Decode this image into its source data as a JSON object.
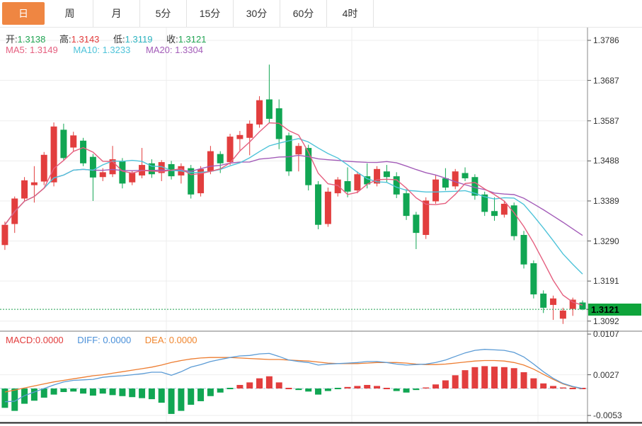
{
  "tabs": {
    "items": [
      {
        "label": "日",
        "active": true
      },
      {
        "label": "周",
        "active": false
      },
      {
        "label": "月",
        "active": false
      },
      {
        "label": "5分",
        "active": false
      },
      {
        "label": "15分",
        "active": false
      },
      {
        "label": "30分",
        "active": false
      },
      {
        "label": "60分",
        "active": false
      },
      {
        "label": "4时",
        "active": false
      }
    ]
  },
  "main_chart": {
    "ohlc": {
      "open_label": "开:",
      "open": "1.3138",
      "high_label": "高:",
      "high": "1.3143",
      "low_label": "低:",
      "low": "1.3119",
      "close_label": "收:",
      "close": "1.3121"
    },
    "ma": {
      "ma5_label": "MA5:",
      "ma5": "1.3149",
      "ma10_label": "MA10:",
      "ma10": "1.3233",
      "ma20_label": "MA20:",
      "ma20": "1.3304"
    },
    "last_price": "1.3121"
  },
  "macd_panel": {
    "macd_label": "MACD:",
    "macd": "0.0000",
    "diff_label": "DIFF:",
    "diff": "0.0000",
    "dea_label": "DEA:",
    "dea": "0.0000"
  },
  "colors": {
    "up": "#e23e3e",
    "down": "#11a653",
    "ma5": "#e55f7f",
    "ma10": "#4ec3d9",
    "ma20": "#a35cb8",
    "diff_line": "#5b9bd5",
    "dea_line": "#ed7d31",
    "badge": "#0ea43b",
    "tab_accent": "#ef8642",
    "dotted_price_line": "#1ca04e",
    "grid": "#ededed",
    "axis_line": "#8a8a8a"
  },
  "chart_data": {
    "type": "candlestick",
    "panels": [
      "price",
      "macd"
    ],
    "legend_position": "top-left",
    "grid": true,
    "price_axis": {
      "ticks": [
        "1.3786",
        "1.3687",
        "1.3587",
        "1.3488",
        "1.3389",
        "1.3290",
        "1.3191",
        "1.3092"
      ],
      "min": 1.3075,
      "max": 1.381
    },
    "current_price": 1.3121,
    "ma_periods": [
      5,
      10,
      20
    ],
    "candles": [
      [
        1.328,
        1.3338,
        1.3268,
        1.333
      ],
      [
        1.3332,
        1.34,
        1.331,
        1.3395
      ],
      [
        1.3395,
        1.3448,
        1.3388,
        1.344
      ],
      [
        1.3428,
        1.3475,
        1.3385,
        1.3435
      ],
      [
        1.3437,
        1.351,
        1.3428,
        1.3503
      ],
      [
        1.3435,
        1.3583,
        1.3425,
        1.3573
      ],
      [
        1.3565,
        1.358,
        1.3488,
        1.3495
      ],
      [
        1.3521,
        1.356,
        1.3512,
        1.3551
      ],
      [
        1.3538,
        1.3545,
        1.3475,
        1.3482
      ],
      [
        1.3498,
        1.3505,
        1.3389,
        1.3447
      ],
      [
        1.3448,
        1.347,
        1.3438,
        1.346
      ],
      [
        1.3455,
        1.3525,
        1.3448,
        1.3492
      ],
      [
        1.3488,
        1.3495,
        1.342,
        1.3432
      ],
      [
        1.3435,
        1.3465,
        1.3428,
        1.3458
      ],
      [
        1.3452,
        1.352,
        1.3445,
        1.3478
      ],
      [
        1.3482,
        1.3492,
        1.3446,
        1.3455
      ],
      [
        1.3458,
        1.349,
        1.3438,
        1.3485
      ],
      [
        1.348,
        1.3488,
        1.3442,
        1.345
      ],
      [
        1.3452,
        1.3482,
        1.3432,
        1.3475
      ],
      [
        1.347,
        1.3478,
        1.3395,
        1.3405
      ],
      [
        1.3408,
        1.3475,
        1.34,
        1.3468
      ],
      [
        1.3462,
        1.3525,
        1.3455,
        1.3512
      ],
      [
        1.3505,
        1.3512,
        1.3458,
        1.3482
      ],
      [
        1.3485,
        1.3555,
        1.3478,
        1.3548
      ],
      [
        1.3542,
        1.3562,
        1.3512,
        1.3552
      ],
      [
        1.3545,
        1.3588,
        1.3502,
        1.358
      ],
      [
        1.3578,
        1.3648,
        1.357,
        1.3638
      ],
      [
        1.364,
        1.3726,
        1.3582,
        1.3592
      ],
      [
        1.3618,
        1.364,
        1.3517,
        1.3542
      ],
      [
        1.3551,
        1.3558,
        1.3451,
        1.3462
      ],
      [
        1.3504,
        1.3532,
        1.3462,
        1.3525
      ],
      [
        1.352,
        1.3528,
        1.3415,
        1.3428
      ],
      [
        1.343,
        1.3438,
        1.3319,
        1.333
      ],
      [
        1.3332,
        1.3422,
        1.3325,
        1.3412
      ],
      [
        1.3408,
        1.3448,
        1.34,
        1.3442
      ],
      [
        1.3438,
        1.3472,
        1.3398,
        1.3412
      ],
      [
        1.3415,
        1.3462,
        1.3408,
        1.3455
      ],
      [
        1.345,
        1.3482,
        1.342,
        1.343
      ],
      [
        1.3432,
        1.3475,
        1.3425,
        1.3468
      ],
      [
        1.3462,
        1.3478,
        1.3436,
        1.3448
      ],
      [
        1.345,
        1.346,
        1.3396,
        1.3405
      ],
      [
        1.3408,
        1.3418,
        1.3342,
        1.3352
      ],
      [
        1.3355,
        1.3362,
        1.327,
        1.331
      ],
      [
        1.3305,
        1.3398,
        1.3295,
        1.339
      ],
      [
        1.3388,
        1.3452,
        1.3382,
        1.3442
      ],
      [
        1.3445,
        1.347,
        1.3415,
        1.3422
      ],
      [
        1.3425,
        1.3468,
        1.3418,
        1.3462
      ],
      [
        1.3458,
        1.3472,
        1.3438,
        1.3445
      ],
      [
        1.3448,
        1.3455,
        1.3392,
        1.3402
      ],
      [
        1.3405,
        1.3412,
        1.3352,
        1.3362
      ],
      [
        1.3364,
        1.3398,
        1.334,
        1.3352
      ],
      [
        1.3355,
        1.339,
        1.3348,
        1.3382
      ],
      [
        1.3378,
        1.3385,
        1.3292,
        1.3302
      ],
      [
        1.3305,
        1.3315,
        1.3222,
        1.3232
      ],
      [
        1.3235,
        1.3242,
        1.3148,
        1.3158
      ],
      [
        1.316,
        1.3168,
        1.3112,
        1.3125
      ],
      [
        1.3132,
        1.3155,
        1.3095,
        1.3148
      ],
      [
        1.3098,
        1.3125,
        1.3085,
        1.3118
      ],
      [
        1.3122,
        1.315,
        1.3105,
        1.3145
      ],
      [
        1.3138,
        1.3143,
        1.3119,
        1.3121
      ]
    ],
    "macd": {
      "ticks": [
        "0.0107",
        "0.0027",
        "-0.0053"
      ],
      "axis_min": -0.0053,
      "axis_max": 0.0107,
      "diff": [
        -0.0026,
        -0.0025,
        -0.0014,
        -0.0007,
        0.0,
        0.0007,
        0.0013,
        0.0016,
        0.0017,
        0.0018,
        0.0022,
        0.0024,
        0.0025,
        0.0027,
        0.0029,
        0.0032,
        0.0032,
        0.0026,
        0.0033,
        0.0042,
        0.0047,
        0.0053,
        0.0057,
        0.0061,
        0.0064,
        0.0065,
        0.0068,
        0.0069,
        0.0063,
        0.0056,
        0.0053,
        0.0051,
        0.0046,
        0.0048,
        0.0049,
        0.005,
        0.0051,
        0.0053,
        0.0053,
        0.0051,
        0.0048,
        0.0046,
        0.0047,
        0.0048,
        0.0051,
        0.0056,
        0.0063,
        0.007,
        0.0075,
        0.0077,
        0.0076,
        0.0075,
        0.0071,
        0.0062,
        0.0048,
        0.0033,
        0.002,
        0.001,
        0.0004,
        0.0
      ],
      "dea": [
        -0.0007,
        -0.0003,
        0.0001,
        0.0005,
        0.0009,
        0.0013,
        0.0016,
        0.0019,
        0.0022,
        0.0025,
        0.0027,
        0.003,
        0.0033,
        0.0036,
        0.0039,
        0.0042,
        0.0046,
        0.0051,
        0.0055,
        0.0058,
        0.006,
        0.0061,
        0.0061,
        0.0061,
        0.006,
        0.0059,
        0.0058,
        0.0057,
        0.0057,
        0.0056,
        0.0055,
        0.0054,
        0.0052,
        0.005,
        0.0049,
        0.0049,
        0.0049,
        0.005,
        0.0051,
        0.0051,
        0.0051,
        0.005,
        0.0048,
        0.0047,
        0.0047,
        0.0048,
        0.005,
        0.0052,
        0.0054,
        0.0055,
        0.0055,
        0.0054,
        0.0051,
        0.0046,
        0.0038,
        0.0028,
        0.0018,
        0.0009,
        0.0003,
        0.0
      ],
      "hist": [
        -0.0038,
        -0.0044,
        -0.003,
        -0.0024,
        -0.0018,
        -0.0012,
        -0.0007,
        -0.0006,
        -0.001,
        -0.0014,
        -0.001,
        -0.0013,
        -0.0015,
        -0.0017,
        -0.0019,
        -0.0021,
        -0.0028,
        -0.005,
        -0.0044,
        -0.0032,
        -0.0025,
        -0.0015,
        -0.0008,
        -0.0001,
        0.0007,
        0.0012,
        0.002,
        0.0024,
        0.0012,
        0.0001,
        -0.0003,
        -0.0006,
        -0.0012,
        -0.0005,
        -0.0001,
        0.0003,
        0.0005,
        0.0007,
        0.0005,
        0.0001,
        -0.0005,
        -0.0008,
        -0.0003,
        0.0002,
        0.0008,
        0.0016,
        0.0026,
        0.0036,
        0.0042,
        0.0044,
        0.0043,
        0.0042,
        0.004,
        0.0032,
        0.002,
        0.001,
        0.0005,
        0.0002,
        0.0001,
        0.0
      ]
    }
  }
}
